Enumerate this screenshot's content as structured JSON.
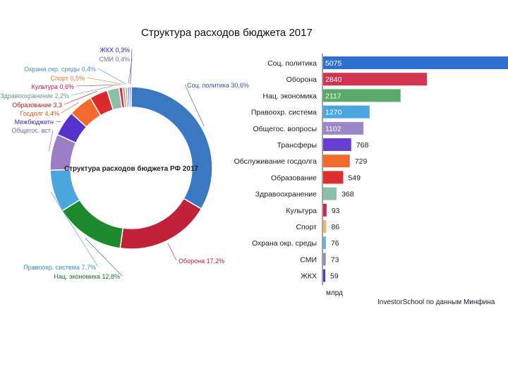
{
  "title": "Структура расходов бюджета 2017",
  "chart_data": [
    {
      "type": "pie",
      "center_label": "Структура расходов бюджета РФ 2017",
      "slices": [
        {
          "label": "Соц. политика 30,6%",
          "value": 30.6,
          "color": "#3a78c2",
          "label_color": "#2a5aa8"
        },
        {
          "label": "Оборона 17,2%",
          "value": 17.2,
          "color": "#c2213a",
          "label_color": "#b01c33"
        },
        {
          "label": "Нац. экономика 12,8%",
          "value": 12.8,
          "color": "#1e8a2e",
          "label_color": "#1e6e28"
        },
        {
          "label": "Правоохр. система 7,7%",
          "value": 7.7,
          "color": "#4aa6dd",
          "label_color": "#3a8fc7"
        },
        {
          "label": "Общегос. вст",
          "value": 6.6,
          "color": "#9b7ec6",
          "label_color": "#7a63a8"
        },
        {
          "label": "Межбюджетн",
          "value": 4.6,
          "color": "#5533cc",
          "label_color": "#3d2aa0"
        },
        {
          "label": "Госдолг 4,4%",
          "value": 4.4,
          "color": "#f26a2e",
          "label_color": "#d94f1a"
        },
        {
          "label": "Образование 3,3",
          "value": 3.3,
          "color": "#d92b2b",
          "label_color": "#b21d1d"
        },
        {
          "label": "Здравоохранение 2,2%",
          "value": 2.2,
          "color": "#8dbfa6",
          "label_color": "#5f9a7d"
        },
        {
          "label": "Культура 0,6%",
          "value": 0.6,
          "color": "#d62050",
          "label_color": "#c01a46"
        },
        {
          "label": "Спорт 0,5%",
          "value": 0.5,
          "color": "#e39a4d",
          "label_color": "#c97a2c"
        },
        {
          "label": "Охрана окр. среды 0,4%",
          "value": 0.4,
          "color": "#6ab4e6",
          "label_color": "#4a8fc7"
        },
        {
          "label": "СМИ 0,4%",
          "value": 0.4,
          "color": "#9a8fb5",
          "label_color": "#7a6f95"
        },
        {
          "label": "ЖКХ 0,3%",
          "value": 0.3,
          "color": "#4433bb",
          "label_color": "#3322aa"
        }
      ]
    },
    {
      "type": "bar",
      "orientation": "horizontal",
      "unit_label": "млрд",
      "xlim": [
        0,
        5075
      ],
      "categories": [
        "Соц. политика",
        "Оборона",
        "Нац. экономика",
        "Правоохр. система",
        "Общегос. вопросы",
        "Трансферы",
        "Обслуживание госдолга",
        "Образование",
        "Здравоохранение",
        "Культура",
        "Спорт",
        "Охрана окр. среды",
        "СМИ",
        "ЖКХ"
      ],
      "values": [
        5075,
        2840,
        2117,
        1270,
        1102,
        768,
        729,
        549,
        368,
        93,
        86,
        76,
        73,
        59
      ],
      "value_labels": [
        "5075",
        "2840",
        "2117",
        "1270",
        "1102",
        "768",
        "729",
        "549",
        "368",
        "93",
        "86",
        "76",
        "73",
        "59"
      ],
      "colors": [
        "#2f6fd0",
        "#d0344e",
        "#5aa86a",
        "#4aa6dd",
        "#9b86c6",
        "#6a3fd0",
        "#f26a2e",
        "#d93030",
        "#8dbfa6",
        "#d62050",
        "#e8b87a",
        "#6ab4e6",
        "#9a8fb5",
        "#5533cc"
      ]
    }
  ],
  "source": "InvestorSchool по данным Минфина"
}
